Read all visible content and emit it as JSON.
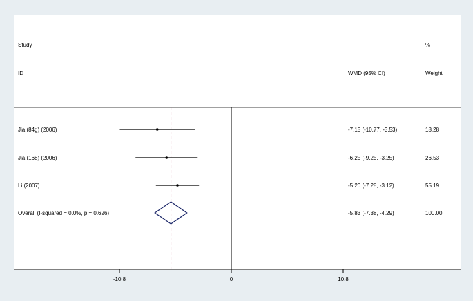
{
  "chart_data": {
    "type": "forest",
    "header": {
      "study_line1": "Study",
      "study_line2": "ID",
      "effect_label": "WMD (95% CI)",
      "weight_line1": "%",
      "weight_line2": "Weight"
    },
    "studies": [
      {
        "label": "Jia (84g) (2006)",
        "estimate": -7.15,
        "ci_low": -10.77,
        "ci_high": -3.53,
        "ci_text": "-7.15 (-10.77, -3.53)",
        "weight": "18.28"
      },
      {
        "label": "Jia (168) (2006)",
        "estimate": -6.25,
        "ci_low": -9.25,
        "ci_high": -3.25,
        "ci_text": "-6.25 (-9.25, -3.25)",
        "weight": "26.53"
      },
      {
        "label": "Li  (2007)",
        "estimate": -5.2,
        "ci_low": -7.28,
        "ci_high": -3.12,
        "ci_text": "-5.20 (-7.28, -3.12)",
        "weight": "55.19"
      }
    ],
    "overall": {
      "label": "Overall  (I-squared = 0.0%, p = 0.626)",
      "estimate": -5.83,
      "ci_low": -7.38,
      "ci_high": -4.29,
      "ci_text": "-5.83 (-7.38, -4.29)",
      "weight": "100.00"
    },
    "xticks": [
      -10.8,
      0,
      10.8
    ],
    "xtick_labels": [
      "-10.8",
      "0",
      "10.8"
    ],
    "xlim": [
      -19.7,
      19.7
    ],
    "null_line": 0,
    "colors": {
      "background": "#e8eef2",
      "panel": "#ffffff",
      "diamond": "#1f2a6b",
      "overall_line": "#b03050",
      "ink": "#000000"
    }
  }
}
